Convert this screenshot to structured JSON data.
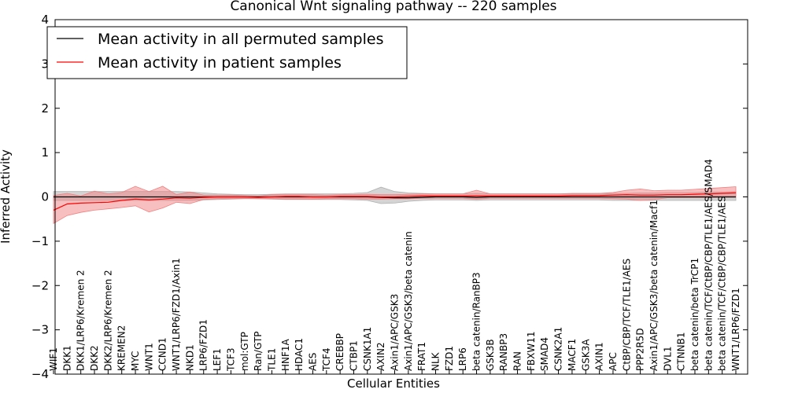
{
  "chart_data": {
    "type": "line",
    "title": "Canonical Wnt signaling pathway -- 220 samples",
    "xlabel": "Cellular Entities",
    "ylabel": "Inferred Activity",
    "ylim": [
      -4,
      4
    ],
    "yticks": [
      "−4",
      "−3",
      "−2",
      "−1",
      "0",
      "1",
      "2",
      "3",
      "4"
    ],
    "grid": false,
    "legend_position": "top-left",
    "categories": [
      "WIF1",
      "DKK1",
      "DKK1/LRP6/Kremen 2",
      "DKK2",
      "DKK2/LRP6/Kremen 2",
      "KREMEN2",
      "MYC",
      "WNT1",
      "CCND1",
      "WNT1/LRP6/FZD1/Axin1",
      "NKD1",
      "LRP6/FZD1",
      "LEF1",
      "TCF3",
      "mol:GTP",
      "Ran/GTP",
      "TLE1",
      "HNF1A",
      "HDAC1",
      "AES",
      "TCF4",
      "CREBBP",
      "CTBP1",
      "CSNK1A1",
      "AXIN2",
      "Axin1/APC/GSK3",
      "Axin1/APC/GSK3/beta catenin",
      "FRAT1",
      "NLK",
      "FZD1",
      "LRP6",
      "beta catenin/RanBP3",
      "GSK3B",
      "RANBP3",
      "RAN",
      "FBXW11",
      "SMAD4",
      "CSNK2A1",
      "MACF1",
      "GSK3A",
      "AXIN1",
      "APC",
      "CtBP/CBP/TCF/TLE1/AES",
      "PPP2R5D",
      "Axin1/APC/GSK3/beta catenin/Macf1",
      "DVL1",
      "CTNNB1",
      "beta catenin/beta TrCP1",
      "beta catenin/TCF/CtBP/CBP/TLE1/AES/SMAD4",
      "beta catenin/TCF/CtBP/CBP/TLE1/AES",
      "WNT1/LRP6/FZD1"
    ],
    "series": [
      {
        "name": "Mean activity in all permuted samples",
        "color": "#000000",
        "band_color": "#b0b0b0",
        "values": [
          0,
          0,
          0,
          0,
          0,
          0,
          0,
          0,
          0,
          0,
          0,
          0,
          0,
          0,
          0,
          0,
          0,
          0,
          0,
          0,
          0,
          0,
          0,
          0,
          -0.01,
          -0.02,
          -0.02,
          -0.01,
          0,
          0,
          0,
          -0.01,
          0,
          0,
          0,
          0,
          0,
          0,
          0,
          0,
          0,
          0,
          0,
          0,
          0,
          0,
          0,
          0,
          0,
          0,
          0
        ],
        "band_lower": [
          -0.08,
          -0.08,
          -0.08,
          -0.08,
          -0.08,
          -0.08,
          -0.08,
          -0.08,
          -0.08,
          -0.08,
          -0.08,
          -0.07,
          -0.06,
          -0.05,
          -0.04,
          -0.04,
          -0.05,
          -0.06,
          -0.06,
          -0.06,
          -0.06,
          -0.06,
          -0.07,
          -0.08,
          -0.15,
          -0.14,
          -0.1,
          -0.08,
          -0.07,
          -0.07,
          -0.07,
          -0.08,
          -0.07,
          -0.07,
          -0.07,
          -0.07,
          -0.07,
          -0.07,
          -0.07,
          -0.07,
          -0.07,
          -0.08,
          -0.08,
          -0.08,
          -0.08,
          -0.08,
          -0.08,
          -0.08,
          -0.08,
          -0.08,
          -0.08
        ],
        "band_upper": [
          0.12,
          0.12,
          0.12,
          0.12,
          0.12,
          0.12,
          0.12,
          0.12,
          0.12,
          0.12,
          0.11,
          0.09,
          0.07,
          0.06,
          0.05,
          0.05,
          0.06,
          0.07,
          0.07,
          0.07,
          0.07,
          0.07,
          0.08,
          0.1,
          0.22,
          0.12,
          0.09,
          0.08,
          0.07,
          0.07,
          0.07,
          0.08,
          0.07,
          0.07,
          0.07,
          0.07,
          0.07,
          0.07,
          0.07,
          0.07,
          0.08,
          0.08,
          0.08,
          0.09,
          0.09,
          0.1,
          0.1,
          0.1,
          0.11,
          0.11,
          0.12
        ]
      },
      {
        "name": "Mean activity in patient samples",
        "color": "#ff0000",
        "band_color": "#f08080",
        "values": [
          -0.3,
          -0.16,
          -0.14,
          -0.13,
          -0.12,
          -0.08,
          -0.05,
          -0.07,
          -0.05,
          -0.02,
          -0.03,
          -0.01,
          0,
          0,
          0,
          -0.01,
          0,
          0.01,
          0.01,
          0,
          0,
          0.01,
          0.01,
          0.01,
          0,
          0,
          0.01,
          0.02,
          0.02,
          0.02,
          0.02,
          0.02,
          0.02,
          0.02,
          0.02,
          0.02,
          0.02,
          0.02,
          0.03,
          0.03,
          0.03,
          0.04,
          0.05,
          0.04,
          0.04,
          0.05,
          0.05,
          0.06,
          0.07,
          0.08,
          0.09
        ],
        "band_lower": [
          -0.6,
          -0.42,
          -0.35,
          -0.3,
          -0.27,
          -0.24,
          -0.2,
          -0.34,
          -0.25,
          -0.12,
          -0.15,
          -0.06,
          -0.04,
          -0.04,
          -0.03,
          -0.04,
          -0.04,
          -0.05,
          -0.05,
          -0.05,
          -0.04,
          -0.04,
          -0.04,
          -0.05,
          -0.05,
          -0.04,
          -0.04,
          -0.03,
          -0.03,
          -0.03,
          -0.03,
          -0.05,
          -0.03,
          -0.03,
          -0.03,
          -0.03,
          -0.03,
          -0.03,
          -0.03,
          -0.03,
          -0.03,
          -0.04,
          -0.05,
          -0.08,
          -0.06,
          -0.02,
          -0.02,
          -0.02,
          -0.02,
          -0.01,
          -0.01
        ],
        "band_upper": [
          0.03,
          0.08,
          0.02,
          0.13,
          0.07,
          0.1,
          0.24,
          0.12,
          0.24,
          0.05,
          0.11,
          0.04,
          0.04,
          0.04,
          0.03,
          0.02,
          0.05,
          0.05,
          0.05,
          0.05,
          0.04,
          0.05,
          0.05,
          0.06,
          0.05,
          0.05,
          0.06,
          0.07,
          0.07,
          0.07,
          0.07,
          0.15,
          0.07,
          0.07,
          0.07,
          0.07,
          0.07,
          0.07,
          0.08,
          0.08,
          0.08,
          0.1,
          0.15,
          0.18,
          0.14,
          0.15,
          0.15,
          0.17,
          0.19,
          0.21,
          0.23
        ]
      }
    ]
  }
}
